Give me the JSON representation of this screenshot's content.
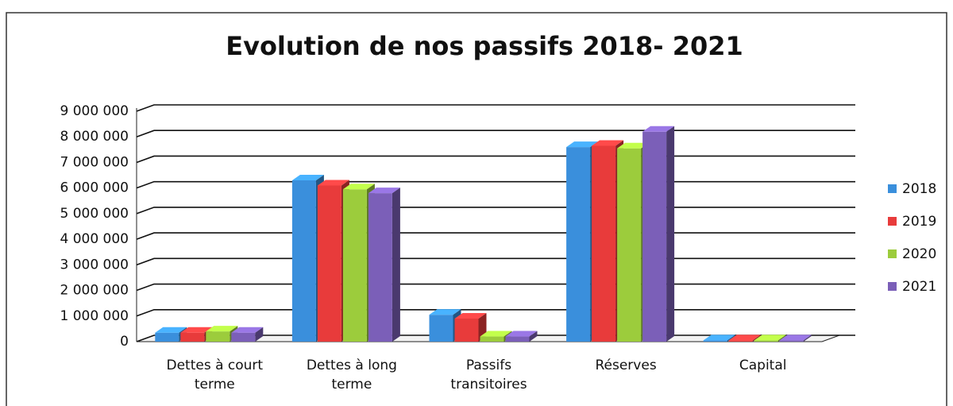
{
  "chart_data": {
    "type": "bar3d",
    "title": "Evolution de nos passifs 2018- 2021",
    "categories": [
      "Dettes à court terme",
      "Dettes à long terme",
      "Passifs transitoires",
      "Réserves",
      "Capital"
    ],
    "series": [
      {
        "name": "2018",
        "color": "#3a8fdc",
        "values": [
          350000,
          6300000,
          1050000,
          7600000,
          50000
        ]
      },
      {
        "name": "2019",
        "color": "#e83b3b",
        "values": [
          350000,
          6100000,
          900000,
          7650000,
          50000
        ]
      },
      {
        "name": "2020",
        "color": "#9ccc3c",
        "values": [
          400000,
          5950000,
          200000,
          7550000,
          50000
        ]
      },
      {
        "name": "2021",
        "color": "#7b5fb8",
        "values": [
          350000,
          5800000,
          200000,
          8200000,
          50000
        ]
      }
    ],
    "ylim": [
      0,
      9000000
    ],
    "yticks": [
      0,
      {
        "value": 1000000,
        "label": "1 000 000"
      },
      {
        "value": 2000000,
        "label": "2 000 000"
      },
      {
        "value": 3000000,
        "label": "3 000 000"
      },
      {
        "value": 4000000,
        "label": "4 000 000"
      },
      {
        "value": 5000000,
        "label": "5 000 000"
      },
      {
        "value": 6000000,
        "label": "6 000 000"
      },
      {
        "value": 7000000,
        "label": "7 000 000"
      },
      {
        "value": 8000000,
        "label": "8 000 000"
      },
      {
        "value": 9000000,
        "label": "9 000 000"
      }
    ],
    "grid": true,
    "legend": "right"
  }
}
